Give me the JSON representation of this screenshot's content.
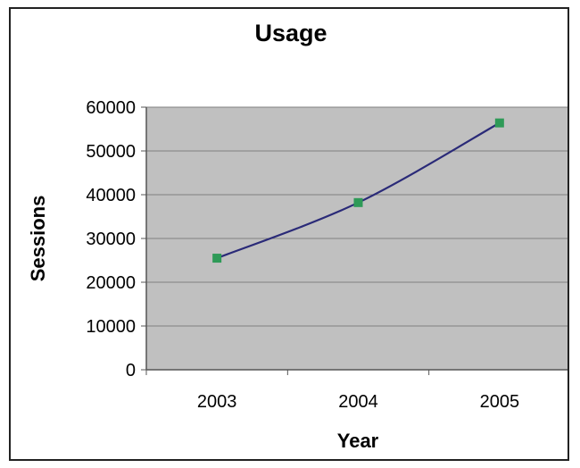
{
  "chart_data": {
    "type": "line",
    "title": "Usage",
    "xlabel": "Year",
    "ylabel": "Sessions",
    "categories": [
      "2003",
      "2004",
      "2005"
    ],
    "series": [
      {
        "values": [
          25500,
          38200,
          56400
        ]
      }
    ],
    "yticks": [
      "0",
      "10000",
      "20000",
      "30000",
      "40000",
      "50000",
      "60000"
    ],
    "ylim": [
      0,
      60000
    ],
    "grid": true,
    "legend": "none",
    "colors": {
      "plot_background": "#c0c0c0",
      "gridline": "#808080",
      "line": "#2a2a78",
      "marker": "#2e9a57",
      "frame": "#222222"
    }
  }
}
